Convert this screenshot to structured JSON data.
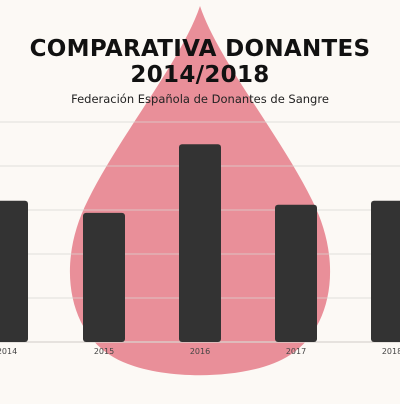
{
  "colors": {
    "background": "#fcf9f5",
    "drop": "#e98f99",
    "bar": "#333333",
    "grid": "#d9d5d0",
    "text": "#111111"
  },
  "chart_data": {
    "type": "bar",
    "title_lines": [
      "COMPARATIVA DONANTES",
      "2014/2018"
    ],
    "subtitle": "Federación Española de Donantes de Sangre",
    "categories": [
      "2014",
      "2015",
      "2016",
      "2017",
      "2018"
    ],
    "values": [
      35,
      32,
      49,
      34,
      35
    ],
    "ylim": [
      0,
      55
    ],
    "grid": true,
    "decoration": "blood-drop"
  }
}
